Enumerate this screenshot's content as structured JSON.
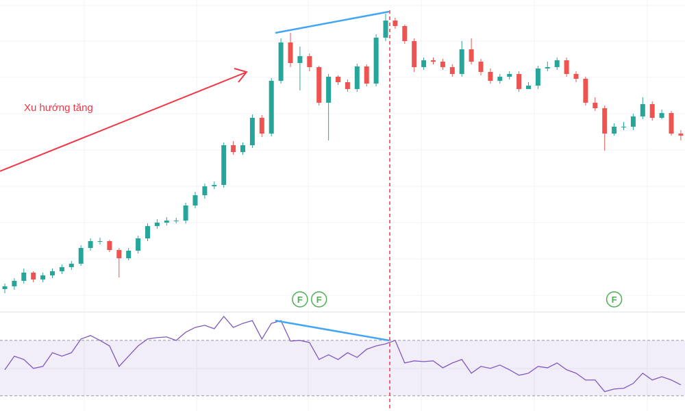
{
  "chart_data": {
    "type": "candlestick",
    "open": [
      38,
      42,
      50,
      62,
      52,
      58,
      64,
      70,
      75,
      98,
      108,
      108,
      95,
      83,
      94,
      112,
      130,
      135,
      138,
      138,
      160,
      175,
      188,
      190,
      248,
      238,
      248,
      288,
      265,
      342,
      398,
      368,
      378,
      362,
      310,
      348,
      340,
      330,
      363,
      338,
      405,
      430,
      422,
      400,
      362,
      372,
      370,
      362,
      352,
      388,
      370,
      355,
      342,
      348,
      352,
      330,
      335,
      360,
      362,
      372,
      352,
      345,
      310,
      302,
      265,
      275,
      275,
      290,
      308,
      288,
      295,
      265
    ],
    "high": [
      46,
      54,
      68,
      64,
      62,
      68,
      74,
      79,
      102,
      112,
      113,
      110,
      98,
      98,
      116,
      134,
      140,
      143,
      142,
      164,
      180,
      192,
      195,
      252,
      254,
      252,
      293,
      292,
      346,
      404,
      412,
      392,
      382,
      364,
      352,
      350,
      344,
      367,
      366,
      410,
      440,
      434,
      424,
      404,
      376,
      376,
      374,
      366,
      400,
      404,
      374,
      360,
      352,
      356,
      356,
      340,
      364,
      370,
      376,
      376,
      356,
      348,
      318,
      306,
      280,
      282,
      294,
      318,
      312,
      300,
      298,
      270
    ],
    "low": [
      32,
      37,
      46,
      48,
      48,
      54,
      60,
      66,
      72,
      94,
      103,
      92,
      55,
      80,
      90,
      108,
      126,
      131,
      134,
      134,
      156,
      170,
      184,
      186,
      234,
      234,
      244,
      260,
      261,
      338,
      362,
      328,
      356,
      306,
      255,
      336,
      326,
      326,
      334,
      334,
      400,
      418,
      396,
      355,
      358,
      366,
      358,
      348,
      348,
      366,
      350,
      338,
      338,
      344,
      326,
      330,
      330,
      356,
      358,
      348,
      340,
      306,
      298,
      240,
      262,
      270,
      270,
      286,
      284,
      286,
      262,
      255
    ],
    "close": [
      42,
      50,
      62,
      52,
      58,
      64,
      70,
      75,
      98,
      108,
      108,
      95,
      83,
      94,
      112,
      130,
      135,
      138,
      138,
      160,
      175,
      188,
      190,
      248,
      238,
      248,
      288,
      265,
      342,
      398,
      368,
      378,
      362,
      310,
      348,
      340,
      330,
      363,
      338,
      405,
      430,
      422,
      400,
      362,
      372,
      370,
      362,
      352,
      388,
      370,
      355,
      342,
      348,
      352,
      330,
      335,
      360,
      362,
      372,
      352,
      345,
      310,
      302,
      265,
      275,
      275,
      290,
      308,
      288,
      295,
      265,
      262
    ],
    "up_color": "#26a69a",
    "down_color": "#ef5350",
    "ylim": [
      0,
      460
    ],
    "rsi": {
      "color": "#7e57c2",
      "ylim": [
        19,
        90.5
      ],
      "bands": [
        30,
        70
      ],
      "values": [
        48.8,
        58.6,
        56.2,
        49.8,
        51.2,
        61.1,
        58.6,
        61.1,
        71.0,
        73.5,
        70.0,
        66.0,
        51.2,
        58.6,
        66.0,
        71.0,
        72.0,
        72.5,
        70.0,
        75.9,
        79.4,
        80.9,
        78.4,
        87.3,
        79.4,
        82.3,
        84.3,
        71.0,
        82.3,
        84.3,
        69.5,
        70.0,
        68.5,
        56.2,
        59.6,
        56.2,
        61.1,
        57.7,
        63.6,
        66.0,
        67.5,
        70.0,
        53.7,
        55.2,
        54.7,
        55.2,
        50.2,
        53.7,
        56.2,
        46.3,
        51.2,
        49.8,
        52.2,
        48.8,
        44.8,
        46.3,
        51.2,
        50.2,
        53.7,
        48.8,
        46.3,
        41.4,
        41.4,
        33.0,
        34.9,
        35.4,
        38.9,
        46.3,
        41.4,
        43.8,
        41.4,
        37.9
      ]
    },
    "trend_label": "Xu hướng tăng",
    "events": [
      {
        "label": "F",
        "index": 31
      },
      {
        "label": "F",
        "index": 33
      },
      {
        "label": "F",
        "index": 64
      }
    ]
  }
}
